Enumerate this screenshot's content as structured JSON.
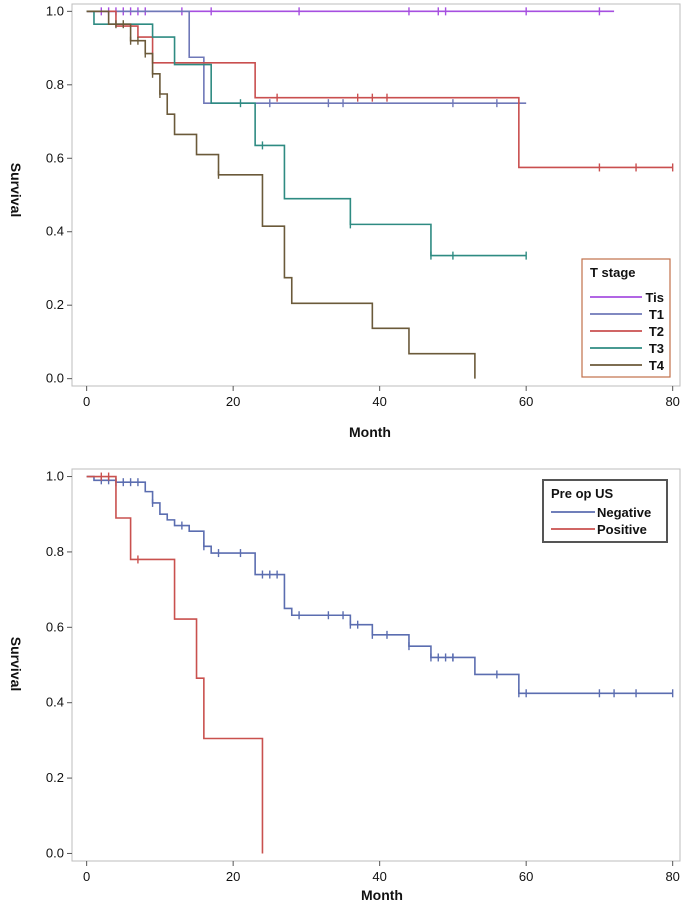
{
  "chart_data": [
    {
      "type": "line",
      "subtype": "kaplan-meier",
      "xlabel": "Month",
      "ylabel": "Survival",
      "xlim": [
        -2,
        81
      ],
      "ylim": [
        -0.02,
        1.02
      ],
      "xticks": [
        0,
        20,
        40,
        60,
        80
      ],
      "yticks": [
        0.0,
        0.2,
        0.4,
        0.6,
        0.8,
        1.0
      ],
      "ytick_labels": [
        "0.0",
        "0.2",
        "0.4",
        "0.6",
        "0.8",
        "1.0"
      ],
      "legend": {
        "title": "T stage",
        "position": "bottom-right",
        "frame_color": "#c0704a"
      },
      "series": [
        {
          "name": "Tis",
          "color": "#a64fe0",
          "steps": [
            [
              0,
              1.0
            ],
            [
              72,
              1.0
            ]
          ],
          "censors": [
            2,
            3,
            4,
            5,
            6,
            7,
            8,
            13,
            17,
            29,
            44,
            48,
            49,
            60,
            70
          ]
        },
        {
          "name": "T1",
          "color": "#6f78b8",
          "steps": [
            [
              0,
              1.0
            ],
            [
              14,
              0.875
            ],
            [
              16,
              0.75
            ],
            [
              60,
              0.75
            ]
          ],
          "censors": [
            25,
            33,
            35,
            50,
            56
          ]
        },
        {
          "name": "T2",
          "color": "#c94f4f",
          "steps": [
            [
              0,
              1.0
            ],
            [
              4,
              0.96
            ],
            [
              7,
              0.93
            ],
            [
              9,
              0.86
            ],
            [
              23,
              0.765
            ],
            [
              59,
              0.575
            ],
            [
              80,
              0.575
            ]
          ],
          "censors": [
            26,
            37,
            39,
            41,
            70,
            75,
            80
          ]
        },
        {
          "name": "T3",
          "color": "#2e8b82",
          "steps": [
            [
              0,
              1.0
            ],
            [
              1,
              0.965
            ],
            [
              9,
              0.93
            ],
            [
              12,
              0.855
            ],
            [
              17,
              0.75
            ],
            [
              23,
              0.635
            ],
            [
              27,
              0.49
            ],
            [
              36,
              0.42
            ],
            [
              47,
              0.335
            ],
            [
              60,
              0.335
            ]
          ],
          "censors": [
            21,
            24,
            36,
            47,
            50,
            60
          ]
        },
        {
          "name": "T4",
          "color": "#6b5a3a",
          "steps": [
            [
              0,
              1.0
            ],
            [
              3,
              0.965
            ],
            [
              6,
              0.92
            ],
            [
              8,
              0.885
            ],
            [
              9,
              0.83
            ],
            [
              10,
              0.775
            ],
            [
              11,
              0.72
            ],
            [
              12,
              0.665
            ],
            [
              15,
              0.61
            ],
            [
              18,
              0.555
            ],
            [
              24,
              0.415
            ],
            [
              27,
              0.275
            ],
            [
              28,
              0.205
            ],
            [
              39,
              0.137
            ],
            [
              44,
              0.068
            ],
            [
              53,
              0.0
            ]
          ],
          "censors": [
            4,
            5,
            6,
            7,
            8,
            9,
            10,
            18
          ]
        }
      ]
    },
    {
      "type": "line",
      "subtype": "kaplan-meier",
      "xlabel": "Month",
      "ylabel": "Survival",
      "xlim": [
        -2,
        81
      ],
      "ylim": [
        -0.02,
        1.02
      ],
      "xticks": [
        0,
        20,
        40,
        60,
        80
      ],
      "yticks": [
        0.0,
        0.2,
        0.4,
        0.6,
        0.8,
        1.0
      ],
      "ytick_labels": [
        "0.0",
        "0.2",
        "0.4",
        "0.6",
        "0.8",
        "1.0"
      ],
      "legend": {
        "title": "Pre op US",
        "position": "top-right",
        "frame_color": "#555555"
      },
      "series": [
        {
          "name": "Negative",
          "color": "#5b6db0",
          "steps": [
            [
              0,
              1.0
            ],
            [
              1,
              0.99
            ],
            [
              4,
              0.985
            ],
            [
              8,
              0.96
            ],
            [
              9,
              0.93
            ],
            [
              10,
              0.9
            ],
            [
              11,
              0.885
            ],
            [
              12,
              0.87
            ],
            [
              14,
              0.855
            ],
            [
              16,
              0.815
            ],
            [
              17,
              0.797
            ],
            [
              23,
              0.74
            ],
            [
              27,
              0.65
            ],
            [
              28,
              0.632
            ],
            [
              36,
              0.607
            ],
            [
              39,
              0.58
            ],
            [
              44,
              0.55
            ],
            [
              47,
              0.52
            ],
            [
              53,
              0.475
            ],
            [
              59,
              0.425
            ],
            [
              80,
              0.425
            ]
          ],
          "censors": [
            2,
            3,
            4,
            5,
            6,
            7,
            9,
            13,
            16,
            18,
            21,
            24,
            25,
            26,
            29,
            33,
            35,
            36,
            37,
            39,
            41,
            44,
            47,
            48,
            49,
            50,
            50,
            56,
            59,
            60,
            70,
            72,
            75,
            80
          ]
        },
        {
          "name": "Positive",
          "color": "#c9514e",
          "steps": [
            [
              0,
              1.0
            ],
            [
              4,
              0.89
            ],
            [
              6,
              0.78
            ],
            [
              12,
              0.622
            ],
            [
              15,
              0.465
            ],
            [
              16,
              0.305
            ],
            [
              24,
              0.0
            ]
          ],
          "censors": [
            2,
            3,
            7
          ]
        }
      ]
    }
  ]
}
